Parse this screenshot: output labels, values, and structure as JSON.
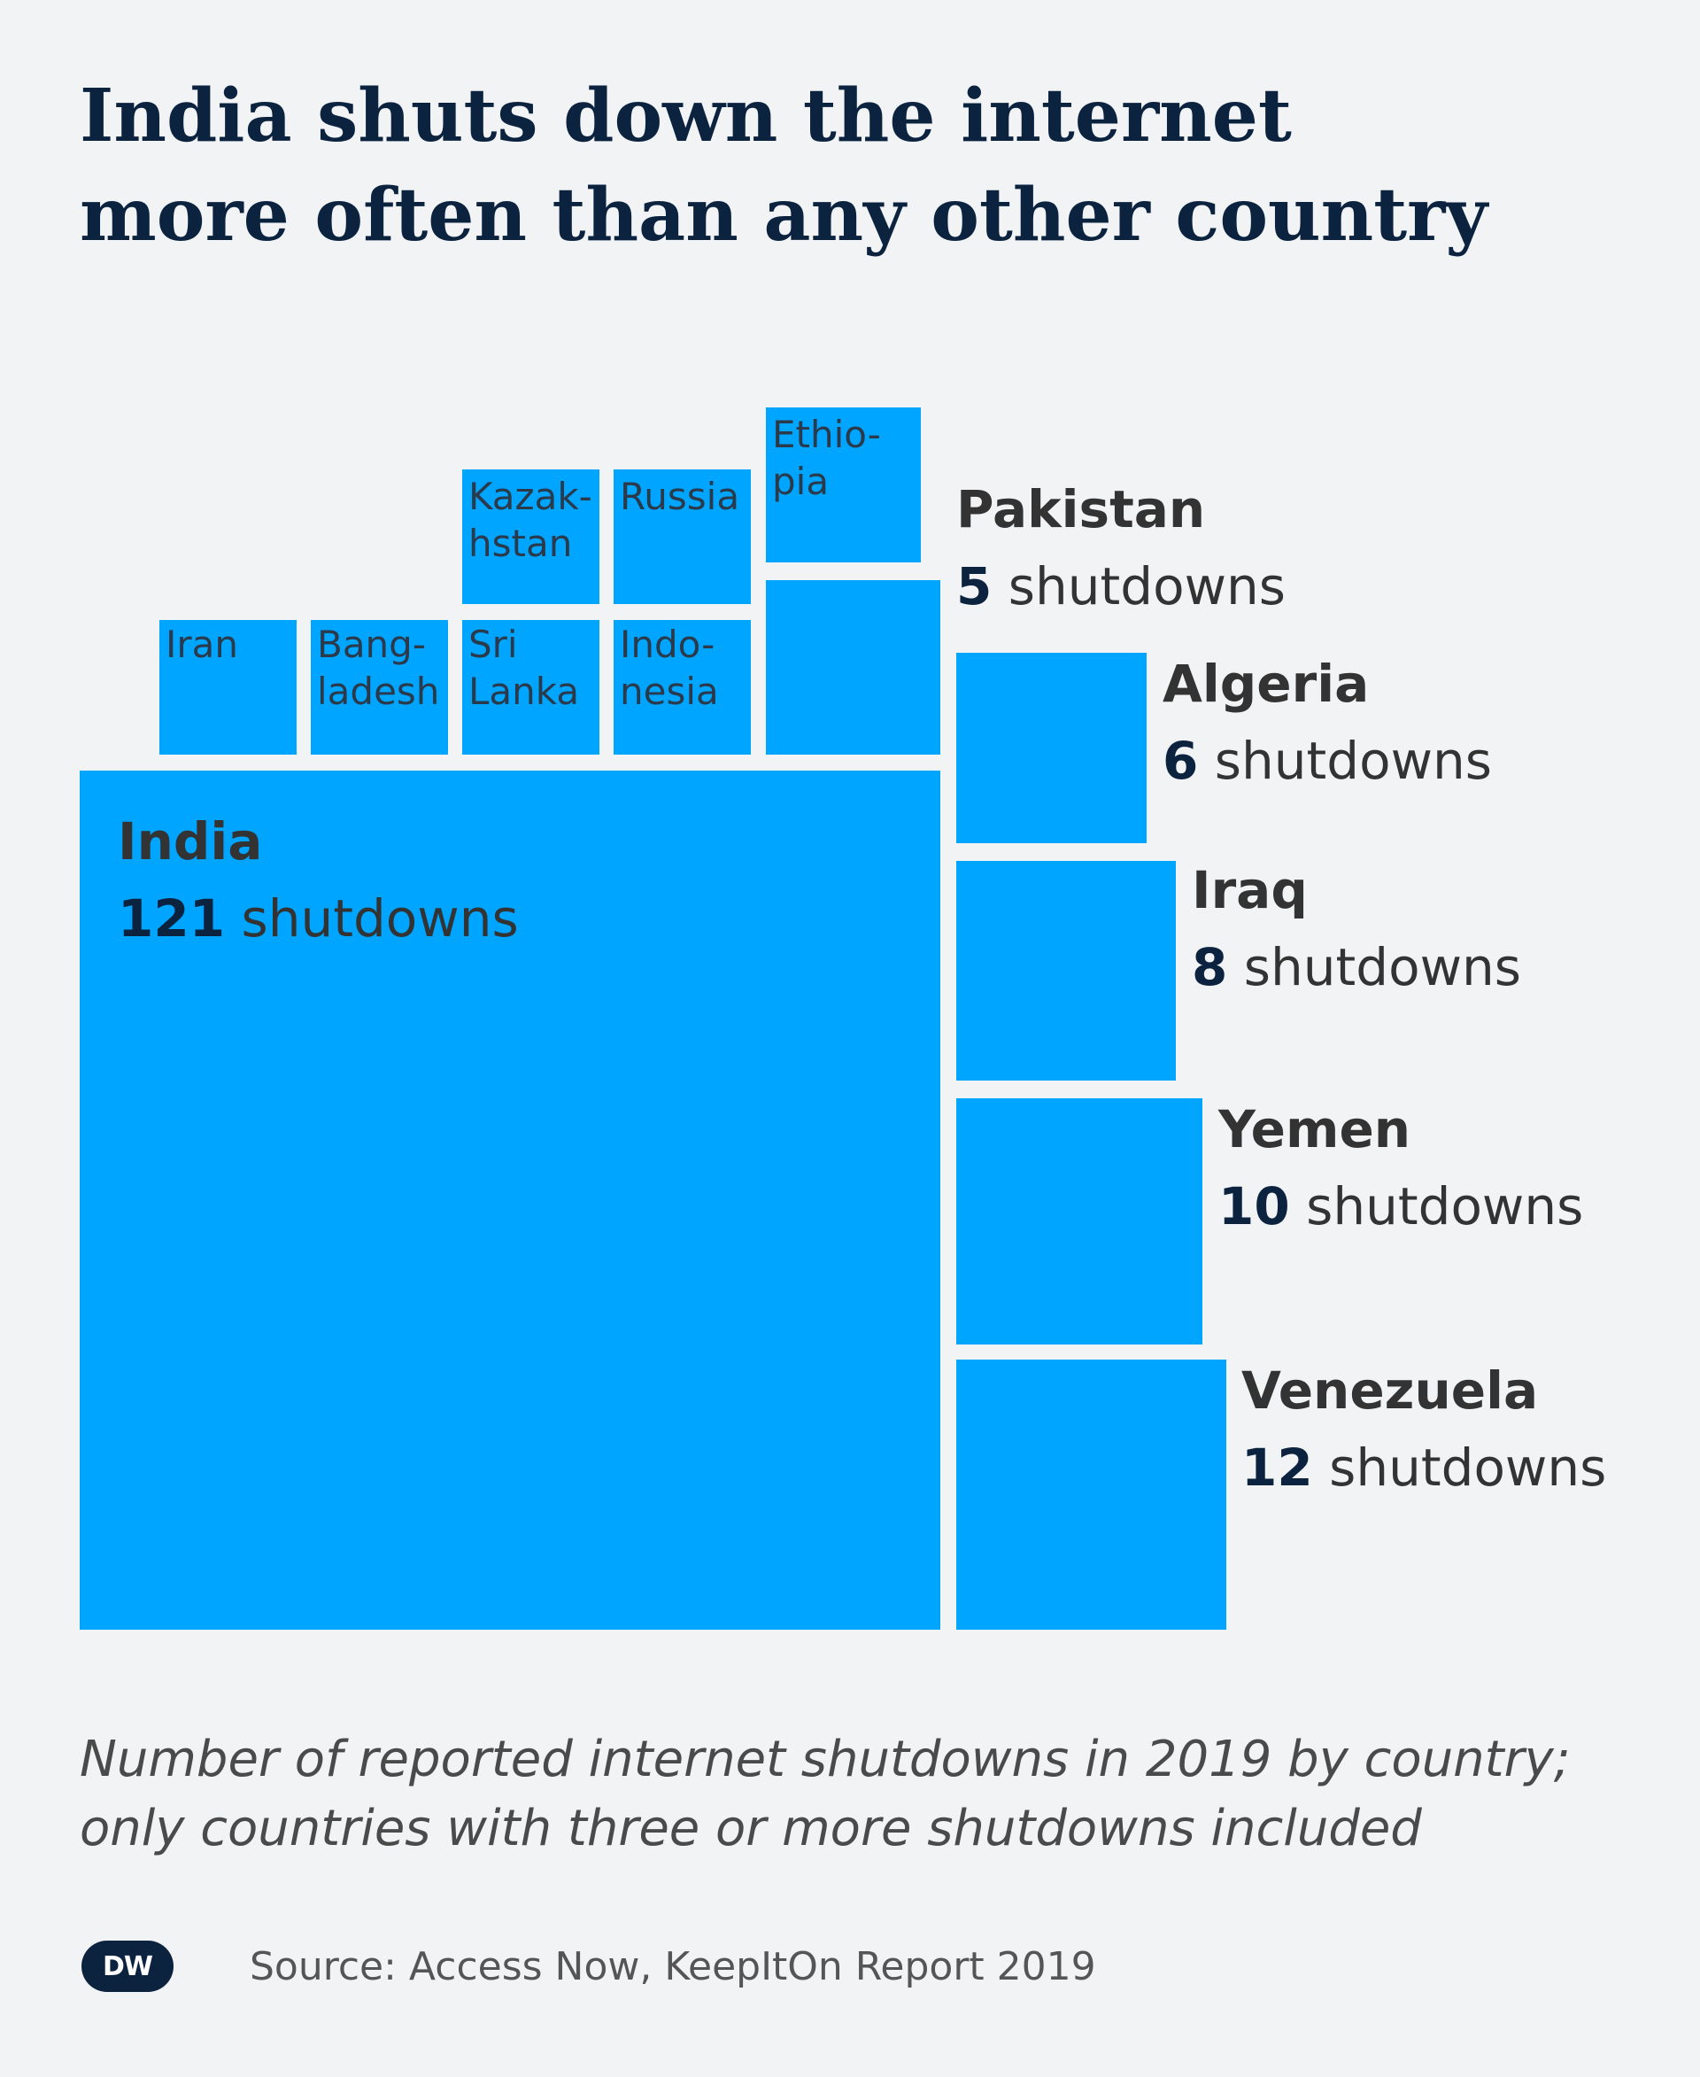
{
  "title": [
    "India shuts down the internet",
    "more often than any other country"
  ],
  "subtitle": [
    "Number of reported internet shutdowns in 2019 by country;",
    "only countries with three or more shutdowns included"
  ],
  "source": "Source: Access Now, KeepItOn Report 2019",
  "logo_text": "DW",
  "colors": {
    "box": "#00a5ff",
    "title": "#0c2340",
    "background": "#f1f3f5"
  },
  "chart_data": {
    "type": "treemap",
    "title": "India shuts down the internet more often than any other country",
    "unit": "shutdowns",
    "items": [
      {
        "name": "India",
        "value": 121,
        "label": [
          "India"
        ],
        "value_label": "121",
        "unit_label": " shutdowns"
      },
      {
        "name": "Venezuela",
        "value": 12,
        "label": [
          "Venezuela"
        ],
        "value_label": "12",
        "unit_label": " shutdowns"
      },
      {
        "name": "Yemen",
        "value": 10,
        "label": [
          "Yemen"
        ],
        "value_label": "10",
        "unit_label": " shutdowns"
      },
      {
        "name": "Iraq",
        "value": 8,
        "label": [
          "Iraq"
        ],
        "value_label": "8",
        "unit_label": " shutdowns"
      },
      {
        "name": "Algeria",
        "value": 6,
        "label": [
          "Algeria"
        ],
        "value_label": "6",
        "unit_label": " shutdowns"
      },
      {
        "name": "Pakistan",
        "value": 5,
        "label": [
          "Pakistan"
        ],
        "value_label": "5",
        "unit_label": " shutdowns"
      },
      {
        "name": "Ethiopia",
        "value": 4,
        "label": [
          "Ethio-",
          "pia"
        ]
      },
      {
        "name": "Iran",
        "value": 3,
        "label": [
          "Iran"
        ]
      },
      {
        "name": "Bangladesh",
        "value": 3,
        "label": [
          "Bang-",
          "ladesh"
        ]
      },
      {
        "name": "Sri Lanka",
        "value": 3,
        "label": [
          "Sri",
          "Lanka"
        ]
      },
      {
        "name": "Indonesia",
        "value": 3,
        "label": [
          "Indo-",
          "nesia"
        ]
      },
      {
        "name": "Kazakhstan",
        "value": 3,
        "label": [
          "Kazak-",
          "hstan"
        ]
      },
      {
        "name": "Russia",
        "value": 3,
        "label": [
          "Russia"
        ]
      }
    ]
  }
}
